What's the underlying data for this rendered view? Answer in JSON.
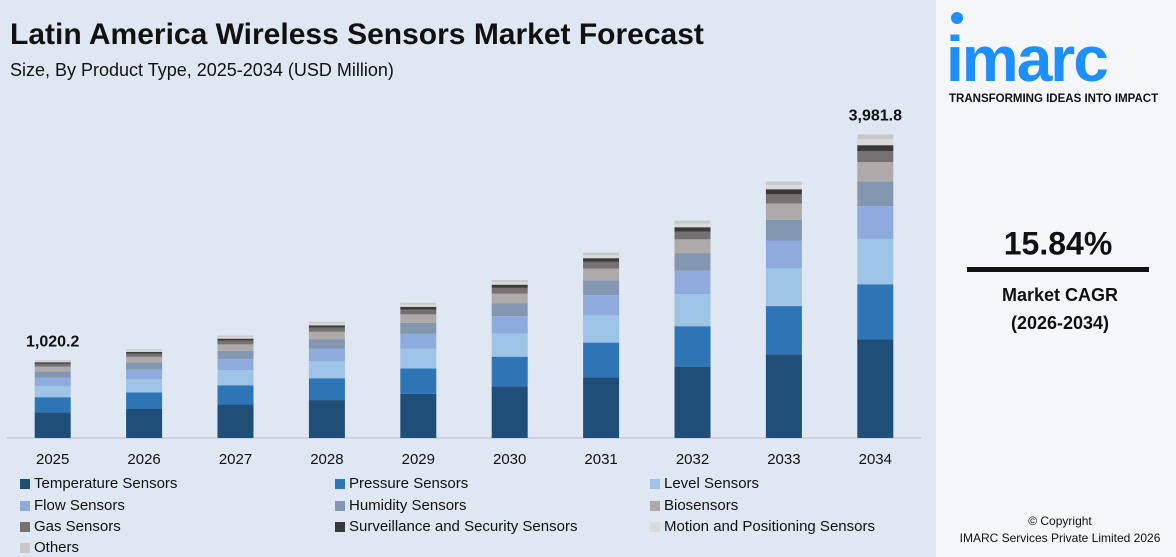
{
  "chart_data": {
    "type": "stacked-bar",
    "title": "Latin America Wireless Sensors Market Forecast",
    "subtitle": "Size, By Product Type, 2025-2034 (USD Million)",
    "categories": [
      "2025",
      "2026",
      "2027",
      "2028",
      "2029",
      "2030",
      "2031",
      "2032",
      "2033",
      "2034"
    ],
    "ylim": [
      0,
      4000
    ],
    "series": [
      {
        "name": "Temperature Sensors",
        "color": "#1f4e79",
        "values": [
          336,
          380.3,
          438.8,
          497.7,
          579.4,
          677.2,
          794.3,
          931.0,
          1098.7,
          1296.5
        ]
      },
      {
        "name": "Pressure Sensors",
        "color": "#2e75b6",
        "values": [
          199,
          218.6,
          252.3,
          286.1,
          333.1,
          389.3,
          456.7,
          535.2,
          631.7,
          720.5
        ]
      },
      {
        "name": "Level Sensors",
        "color": "#9dc3e6",
        "values": [
          148,
          171.0,
          197.3,
          223.7,
          260.5,
          304.4,
          357.1,
          418.5,
          493.9,
          589.3
        ]
      },
      {
        "name": "Flow Sensors",
        "color": "#8faadc",
        "values": [
          110,
          126.8,
          146.3,
          165.9,
          193.1,
          225.7,
          264.8,
          310.3,
          366.2,
          434
        ]
      },
      {
        "name": "Humidity Sensors",
        "color": "#8497b0",
        "values": [
          82,
          94.2,
          108.7,
          123.3,
          143.5,
          167.8,
          196.7,
          230.6,
          272.2,
          326.5
        ]
      },
      {
        "name": "Biosensors",
        "color": "#aeaaaa",
        "values": [
          63,
          73.3,
          84.5,
          95.9,
          111.6,
          130.5,
          153.0,
          179.4,
          211.7,
          250.8
        ]
      },
      {
        "name": "Gas Sensors",
        "color": "#767171",
        "values": [
          36,
          41.9,
          48.3,
          54.8,
          63.8,
          74.6,
          87.4,
          102.5,
          121.0,
          143.3
        ]
      },
      {
        "name": "Surveillance and Security Sensors",
        "color": "#3a3a3a",
        "values": [
          20,
          23.3,
          26.8,
          30.4,
          35.4,
          41.4,
          48.6,
          56.9,
          67.2,
          79.6
        ]
      },
      {
        "name": "Motion and Positioning Sensors",
        "color": "#dadada",
        "values": [
          15,
          19.8,
          22.8,
          25.9,
          30.1,
          35.2,
          41.3,
          48.4,
          57.1,
          79.6
        ]
      },
      {
        "name": "Others",
        "color": "#c8c8c8",
        "values": [
          11.2,
          15.1,
          17.4,
          19.8,
          23.0,
          26.9,
          31.6,
          37.0,
          43.7,
          61.7
        ]
      }
    ],
    "totals": [
      1020.2,
      null,
      null,
      null,
      null,
      null,
      null,
      null,
      null,
      3981.8
    ],
    "total_labels": [
      "1,020.2",
      null,
      null,
      null,
      null,
      null,
      null,
      null,
      null,
      "3,981.8"
    ]
  },
  "sidebar": {
    "logo": "imarc",
    "tagline": "TRANSFORMING IDEAS INTO IMPACT",
    "cagr": "15.84%",
    "cagr_label": "Market CAGR",
    "cagr_period": "(2026-2034)",
    "copyright": "© Copyright",
    "company": "IMARC Services Private Limited 2026"
  }
}
